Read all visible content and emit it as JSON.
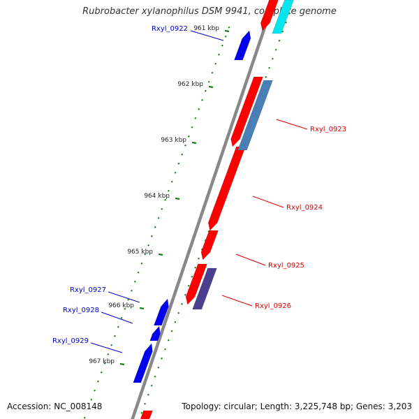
{
  "title": "Rubrobacter xylanophilus DSM 9941, complete genome",
  "footer": {
    "accession": "Accession: NC_008148",
    "summary": "Topology: circular; Length: 3,225,748 bp; Genes: 3,203"
  },
  "colors": {
    "axis": "#888888",
    "ticks": "#1a7f1a",
    "forward_gene": "#ff0000",
    "reverse_gene": "#0000ee",
    "label_reverse": "#0000cc",
    "label_forward": "#dd0000",
    "feature_steel": "#4a7fb5",
    "feature_purple": "#4b3f8f",
    "feature_cyan": "#00e5ee"
  },
  "kbp_labels": [
    "961 kbp",
    "962 kbp",
    "963 kbp",
    "964 kbp",
    "965 kbp",
    "966 kbp",
    "967 kbp"
  ],
  "gene_labels": [
    {
      "text": "Rxyl_0922",
      "strand": "reverse"
    },
    {
      "text": "Rxyl_0923",
      "strand": "forward"
    },
    {
      "text": "Rxyl_0924",
      "strand": "forward"
    },
    {
      "text": "Rxyl_0925",
      "strand": "forward"
    },
    {
      "text": "Rxyl_0926",
      "strand": "forward"
    },
    {
      "text": "Rxyl_0927",
      "strand": "reverse"
    },
    {
      "text": "Rxyl_0928",
      "strand": "reverse"
    },
    {
      "text": "Rxyl_0929",
      "strand": "reverse"
    }
  ]
}
